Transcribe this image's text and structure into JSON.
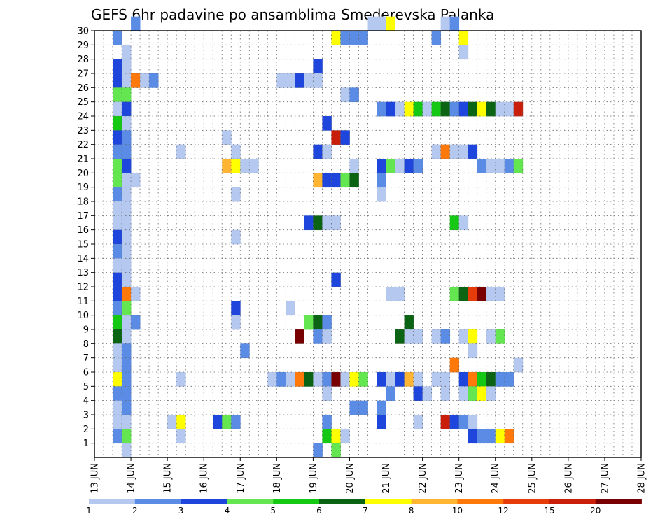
{
  "chart_data": {
    "type": "heatmap",
    "title": "GEFS 6hr padavine po ansamblima Smederevska Palanka",
    "xlabel": "",
    "ylabel": "",
    "x_ticks": [
      "13 JUN",
      "14 JUN",
      "15 JUN",
      "16 JUN",
      "17 JUN",
      "18 JUN",
      "19 JUN",
      "20 JUN",
      "21 JUN",
      "22 JUN",
      "23 JUN",
      "24 JUN",
      "25 JUN",
      "26 JUN",
      "27 JUN",
      "28 JUN"
    ],
    "y_ticks": [
      "1",
      "2",
      "3",
      "4",
      "5",
      "6",
      "7",
      "8",
      "9",
      "10",
      "11",
      "12",
      "13",
      "14",
      "15",
      "16",
      "17",
      "18",
      "19",
      "20",
      "21",
      "22",
      "23",
      "24",
      "25",
      "26",
      "27",
      "28",
      "29",
      "30"
    ],
    "x_range": [
      0,
      60
    ],
    "y_range": [
      0,
      30
    ],
    "grid": true,
    "legend": {
      "placement": "bottom",
      "labels": [
        "1",
        "2",
        "3",
        "4",
        "5",
        "6",
        "7",
        "8",
        "10",
        "12",
        "15",
        "20"
      ],
      "colors": [
        "#b4c8f0",
        "#5a8ce6",
        "#1e46dc",
        "#64e650",
        "#14c814",
        "#0a6414",
        "#ffff00",
        "#ffb432",
        "#ff780a",
        "#e63c0a",
        "#c81e0a",
        "#780000"
      ]
    },
    "cells": [
      {
        "m": 30,
        "s": [
          [
            4,
            2
          ],
          [
            30,
            1
          ],
          [
            31,
            1
          ],
          [
            32,
            7
          ],
          [
            38,
            1
          ],
          [
            39,
            2
          ]
        ]
      },
      {
        "m": 29,
        "s": [
          [
            2,
            2
          ],
          [
            26,
            7
          ],
          [
            27,
            2
          ],
          [
            28,
            2
          ],
          [
            29,
            2
          ],
          [
            37,
            2
          ],
          [
            40,
            7
          ]
        ]
      },
      {
        "m": 28,
        "s": [
          [
            3,
            1
          ],
          [
            40,
            1
          ]
        ]
      },
      {
        "m": 27,
        "s": [
          [
            2,
            3
          ],
          [
            3,
            1
          ],
          [
            24,
            3
          ]
        ]
      },
      {
        "m": 26,
        "s": [
          [
            2,
            3
          ],
          [
            3,
            1
          ],
          [
            4,
            9
          ],
          [
            5,
            1
          ],
          [
            6,
            2
          ],
          [
            20,
            1
          ],
          [
            21,
            1
          ],
          [
            22,
            3
          ],
          [
            23,
            1
          ],
          [
            24,
            1
          ]
        ]
      },
      {
        "m": 25,
        "s": [
          [
            2,
            4
          ],
          [
            3,
            4
          ],
          [
            27,
            1
          ],
          [
            28,
            2
          ]
        ]
      },
      {
        "m": 24,
        "s": [
          [
            2,
            1
          ],
          [
            3,
            3
          ],
          [
            31,
            2
          ],
          [
            32,
            3
          ],
          [
            33,
            1
          ],
          [
            34,
            7
          ],
          [
            35,
            5
          ],
          [
            36,
            1
          ],
          [
            37,
            5
          ],
          [
            38,
            6
          ],
          [
            39,
            2
          ],
          [
            40,
            3
          ],
          [
            41,
            6
          ],
          [
            42,
            7
          ],
          [
            43,
            6
          ],
          [
            44,
            1
          ],
          [
            45,
            1
          ],
          [
            46,
            11
          ]
        ]
      },
      {
        "m": 23,
        "s": [
          [
            2,
            5
          ],
          [
            3,
            1
          ],
          [
            25,
            3
          ]
        ]
      },
      {
        "m": 22,
        "s": [
          [
            2,
            3
          ],
          [
            3,
            2
          ],
          [
            14,
            1
          ],
          [
            26,
            11
          ],
          [
            27,
            3
          ]
        ]
      },
      {
        "m": 21,
        "s": [
          [
            2,
            2
          ],
          [
            3,
            2
          ],
          [
            9,
            1
          ],
          [
            15,
            1
          ],
          [
            24,
            3
          ],
          [
            25,
            1
          ],
          [
            37,
            1
          ],
          [
            38,
            9
          ],
          [
            39,
            1
          ],
          [
            40,
            1
          ],
          [
            41,
            3
          ]
        ]
      },
      {
        "m": 20,
        "s": [
          [
            2,
            4
          ],
          [
            3,
            3
          ],
          [
            14,
            8
          ],
          [
            15,
            7
          ],
          [
            16,
            1
          ],
          [
            17,
            1
          ],
          [
            28,
            1
          ],
          [
            31,
            3
          ],
          [
            32,
            4
          ],
          [
            33,
            1
          ],
          [
            34,
            3
          ],
          [
            35,
            2
          ],
          [
            42,
            2
          ],
          [
            43,
            1
          ],
          [
            44,
            1
          ],
          [
            45,
            2
          ],
          [
            46,
            4
          ]
        ]
      },
      {
        "m": 19,
        "s": [
          [
            2,
            4
          ],
          [
            3,
            1
          ],
          [
            4,
            1
          ],
          [
            24,
            8
          ],
          [
            25,
            3
          ],
          [
            26,
            3
          ],
          [
            27,
            4
          ],
          [
            28,
            6
          ],
          [
            31,
            2
          ]
        ]
      },
      {
        "m": 18,
        "s": [
          [
            2,
            2
          ],
          [
            3,
            1
          ],
          [
            15,
            1
          ],
          [
            31,
            1
          ]
        ]
      },
      {
        "m": 17,
        "s": [
          [
            2,
            1
          ],
          [
            3,
            1
          ]
        ]
      },
      {
        "m": 16,
        "s": [
          [
            2,
            1
          ],
          [
            3,
            1
          ],
          [
            23,
            3
          ],
          [
            24,
            6
          ],
          [
            25,
            1
          ],
          [
            26,
            1
          ],
          [
            39,
            5
          ],
          [
            40,
            1
          ]
        ]
      },
      {
        "m": 15,
        "s": [
          [
            2,
            3
          ],
          [
            3,
            1
          ],
          [
            15,
            1
          ]
        ]
      },
      {
        "m": 14,
        "s": [
          [
            2,
            2
          ],
          [
            3,
            1
          ]
        ]
      },
      {
        "m": 13,
        "s": [
          [
            2,
            1
          ],
          [
            3,
            1
          ]
        ]
      },
      {
        "m": 12,
        "s": [
          [
            2,
            3
          ],
          [
            3,
            1
          ],
          [
            26,
            3
          ]
        ]
      },
      {
        "m": 11,
        "s": [
          [
            2,
            3
          ],
          [
            3,
            9
          ],
          [
            4,
            1
          ],
          [
            32,
            1
          ],
          [
            33,
            1
          ],
          [
            39,
            4
          ],
          [
            40,
            6
          ],
          [
            41,
            10
          ],
          [
            42,
            12
          ],
          [
            43,
            1
          ],
          [
            44,
            1
          ]
        ]
      },
      {
        "m": 10,
        "s": [
          [
            2,
            2
          ],
          [
            3,
            4
          ],
          [
            15,
            3
          ],
          [
            21,
            1
          ]
        ]
      },
      {
        "m": 9,
        "s": [
          [
            2,
            5
          ],
          [
            3,
            1
          ],
          [
            4,
            2
          ],
          [
            15,
            1
          ],
          [
            23,
            4
          ],
          [
            24,
            6
          ],
          [
            25,
            2
          ],
          [
            34,
            6
          ]
        ]
      },
      {
        "m": 8,
        "s": [
          [
            2,
            6
          ],
          [
            3,
            1
          ],
          [
            22,
            12
          ],
          [
            24,
            2
          ],
          [
            25,
            1
          ],
          [
            33,
            6
          ],
          [
            34,
            1
          ],
          [
            35,
            1
          ],
          [
            37,
            1
          ],
          [
            38,
            2
          ],
          [
            40,
            1
          ],
          [
            41,
            7
          ],
          [
            43,
            1
          ],
          [
            44,
            4
          ]
        ]
      },
      {
        "m": 7,
        "s": [
          [
            2,
            1
          ],
          [
            3,
            2
          ],
          [
            16,
            2
          ],
          [
            41,
            1
          ]
        ]
      },
      {
        "m": 6,
        "s": [
          [
            2,
            1
          ],
          [
            3,
            2
          ],
          [
            39,
            9
          ],
          [
            46,
            1
          ]
        ]
      },
      {
        "m": 5,
        "s": [
          [
            2,
            7
          ],
          [
            3,
            2
          ],
          [
            9,
            1
          ],
          [
            19,
            1
          ],
          [
            20,
            2
          ],
          [
            21,
            1
          ],
          [
            22,
            9
          ],
          [
            23,
            6
          ],
          [
            24,
            1
          ],
          [
            25,
            2
          ],
          [
            26,
            12
          ],
          [
            27,
            1
          ],
          [
            28,
            7
          ],
          [
            29,
            4
          ],
          [
            31,
            3
          ],
          [
            32,
            1
          ],
          [
            33,
            3
          ],
          [
            34,
            8
          ],
          [
            35,
            1
          ],
          [
            37,
            1
          ],
          [
            38,
            1
          ],
          [
            40,
            3
          ],
          [
            41,
            9
          ],
          [
            42,
            5
          ],
          [
            43,
            6
          ],
          [
            44,
            2
          ],
          [
            45,
            2
          ]
        ]
      },
      {
        "m": 4,
        "s": [
          [
            2,
            2
          ],
          [
            3,
            2
          ],
          [
            25,
            1
          ],
          [
            32,
            2
          ],
          [
            35,
            3
          ],
          [
            36,
            1
          ],
          [
            38,
            1
          ],
          [
            40,
            1
          ],
          [
            41,
            4
          ],
          [
            42,
            7
          ],
          [
            43,
            1
          ]
        ]
      },
      {
        "m": 3,
        "s": [
          [
            2,
            1
          ],
          [
            3,
            2
          ],
          [
            28,
            2
          ],
          [
            29,
            2
          ],
          [
            31,
            2
          ]
        ]
      },
      {
        "m": 2,
        "s": [
          [
            2,
            1
          ],
          [
            3,
            1
          ],
          [
            8,
            1
          ],
          [
            9,
            7
          ],
          [
            13,
            3
          ],
          [
            14,
            4
          ],
          [
            15,
            2
          ],
          [
            25,
            2
          ],
          [
            31,
            3
          ],
          [
            35,
            1
          ],
          [
            38,
            11
          ],
          [
            39,
            3
          ],
          [
            40,
            2
          ],
          [
            41,
            1
          ]
        ]
      },
      {
        "m": 1,
        "s": [
          [
            2,
            2
          ],
          [
            3,
            4
          ],
          [
            9,
            1
          ],
          [
            25,
            5
          ],
          [
            26,
            7
          ],
          [
            27,
            1
          ],
          [
            41,
            3
          ],
          [
            42,
            2
          ],
          [
            43,
            2
          ],
          [
            44,
            7
          ],
          [
            45,
            9
          ]
        ]
      },
      {
        "m": 0,
        "s": [
          [
            3,
            1
          ],
          [
            24,
            2
          ],
          [
            26,
            4
          ]
        ]
      }
    ]
  }
}
